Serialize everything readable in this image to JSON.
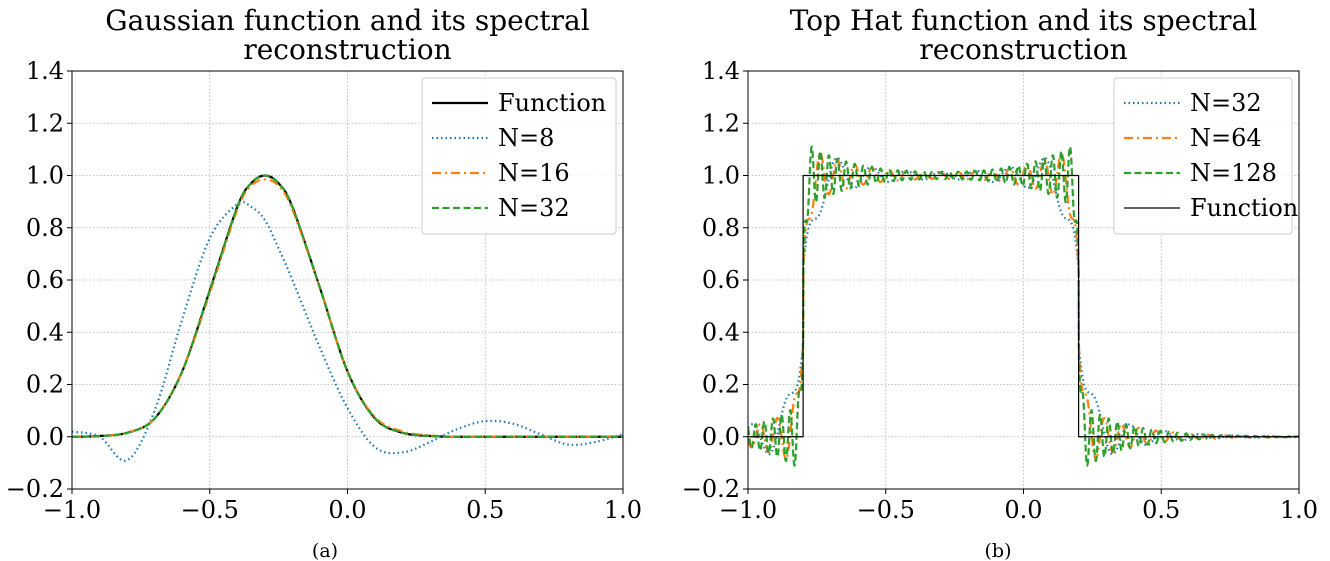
{
  "chart_data": [
    {
      "type": "line",
      "title_lines": [
        "Gaussian function and its spectral",
        "reconstruction"
      ],
      "caption": "(a)",
      "xlim": [
        -1.0,
        1.0
      ],
      "ylim": [
        -0.2,
        1.4
      ],
      "xticks": [
        "−1.0",
        "−0.5",
        "0.0",
        "0.5",
        "1.0"
      ],
      "yticks": [
        "−0.2",
        "0.0",
        "0.2",
        "0.4",
        "0.6",
        "0.8",
        "1.0",
        "1.2",
        "1.4"
      ],
      "grid": true,
      "legend_position": "upper right",
      "x": [
        -1.0,
        -0.9,
        -0.8,
        -0.7,
        -0.6,
        -0.5,
        -0.4,
        -0.35,
        -0.3,
        -0.25,
        -0.2,
        -0.1,
        0.0,
        0.1,
        0.2,
        0.3,
        0.4,
        0.5,
        0.6,
        0.7,
        0.8,
        0.9,
        1.0
      ],
      "series": [
        {
          "name": "Function",
          "color": "#000000",
          "style": "solid",
          "values": [
            0.0,
            0.003,
            0.015,
            0.07,
            0.25,
            0.56,
            0.88,
            0.97,
            1.0,
            0.97,
            0.88,
            0.57,
            0.25,
            0.07,
            0.015,
            0.003,
            0.0,
            0.0,
            0.0,
            0.0,
            0.0,
            0.0,
            0.0
          ]
        },
        {
          "name": "N=8",
          "color": "#1f77b4",
          "style": "dotted",
          "values": [
            0.02,
            0.0,
            -0.09,
            0.1,
            0.45,
            0.76,
            0.89,
            0.88,
            0.83,
            0.72,
            0.6,
            0.34,
            0.11,
            -0.04,
            -0.06,
            -0.02,
            0.03,
            0.06,
            0.05,
            0.01,
            -0.03,
            -0.02,
            0.01
          ]
        },
        {
          "name": "N=16",
          "color": "#ff7f0e",
          "style": "dashdot",
          "values": [
            0.0,
            0.002,
            0.016,
            0.07,
            0.25,
            0.55,
            0.87,
            0.96,
            0.985,
            0.96,
            0.87,
            0.57,
            0.25,
            0.075,
            0.02,
            0.005,
            0.0,
            0.0,
            0.0,
            0.0,
            0.0,
            0.0,
            0.0
          ]
        },
        {
          "name": "N=32",
          "color": "#2ca02c",
          "style": "dashed",
          "values": [
            0.0,
            0.003,
            0.015,
            0.07,
            0.25,
            0.56,
            0.88,
            0.97,
            1.0,
            0.97,
            0.88,
            0.57,
            0.25,
            0.07,
            0.015,
            0.003,
            0.0,
            0.0,
            0.0,
            0.0,
            0.0,
            0.0,
            0.0
          ]
        }
      ]
    },
    {
      "type": "line",
      "title_lines": [
        "Top Hat function and its spectral",
        "reconstruction"
      ],
      "caption": "(b)",
      "xlim": [
        -1.0,
        1.0
      ],
      "ylim": [
        -0.2,
        1.4
      ],
      "xticks": [
        "−1.0",
        "−0.5",
        "0.0",
        "0.5",
        "1.0"
      ],
      "yticks": [
        "−0.2",
        "0.0",
        "0.2",
        "0.4",
        "0.6",
        "0.8",
        "1.0",
        "1.2",
        "1.4"
      ],
      "grid": true,
      "legend_position": "upper right",
      "step": {
        "low": 0.0,
        "high": 1.0,
        "x_on": -0.8,
        "x_off": 0.2
      },
      "series": [
        {
          "name": "N=32",
          "color": "#1f77b4",
          "style": "dotted",
          "gibbs_amplitude": 0.16,
          "ripple_cycles": 16,
          "transition_width": 0.06
        },
        {
          "name": "N=64",
          "color": "#ff7f0e",
          "style": "dashdot",
          "gibbs_amplitude": 0.14,
          "ripple_cycles": 32,
          "transition_width": 0.03
        },
        {
          "name": "N=128",
          "color": "#2ca02c",
          "style": "dashed",
          "gibbs_amplitude": 0.15,
          "ripple_cycles": 64,
          "transition_width": 0.015
        },
        {
          "name": "Function",
          "color": "#000000",
          "style": "solid-thin"
        }
      ]
    }
  ]
}
